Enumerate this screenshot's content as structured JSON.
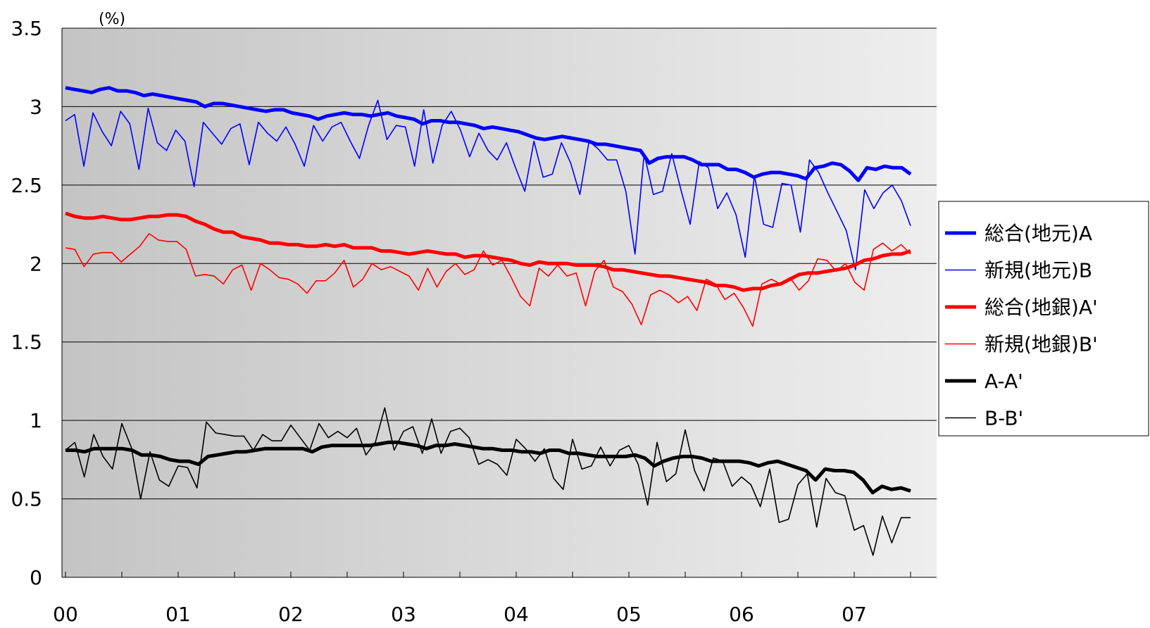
{
  "chart_data": {
    "type": "line",
    "title": "",
    "xlabel": "",
    "ylabel": "(%)",
    "ylim": [
      0,
      3.5
    ],
    "yticks": [
      "0",
      "0.5",
      "1",
      "1.5",
      "2",
      "2.5",
      "3",
      "3.5"
    ],
    "xlim": [
      0,
      7.72
    ],
    "xticks": [
      "00",
      "01",
      "02",
      "03",
      "04",
      "05",
      "06",
      "07"
    ],
    "grid": "horizontal",
    "legend_position": "right",
    "series": [
      {
        "name": "総合(地元)A",
        "color": "#0000ff",
        "style": "thick",
        "values": [
          3.12,
          3.11,
          3.1,
          3.09,
          3.11,
          3.12,
          3.1,
          3.1,
          3.09,
          3.07,
          3.08,
          3.07,
          3.06,
          3.05,
          3.04,
          3.03,
          3.0,
          3.02,
          3.02,
          3.01,
          3.0,
          2.99,
          2.98,
          2.97,
          2.98,
          2.98,
          2.96,
          2.95,
          2.94,
          2.92,
          2.94,
          2.95,
          2.96,
          2.95,
          2.95,
          2.94,
          2.95,
          2.96,
          2.94,
          2.93,
          2.92,
          2.89,
          2.91,
          2.91,
          2.9,
          2.9,
          2.89,
          2.88,
          2.86,
          2.87,
          2.86,
          2.85,
          2.84,
          2.82,
          2.8,
          2.79,
          2.8,
          2.81,
          2.8,
          2.79,
          2.78,
          2.76,
          2.76,
          2.75,
          2.74,
          2.73,
          2.72,
          2.64,
          2.67,
          2.68,
          2.68,
          2.68,
          2.66,
          2.63,
          2.63,
          2.63,
          2.6,
          2.6,
          2.58,
          2.55,
          2.57,
          2.58,
          2.58,
          2.57,
          2.56,
          2.54,
          2.61,
          2.62,
          2.64,
          2.63,
          2.59,
          2.53,
          2.61,
          2.6,
          2.62,
          2.61,
          2.61,
          2.57
        ]
      },
      {
        "name": "新規(地元)B",
        "color": "#0000ff",
        "style": "thin",
        "values": [
          2.91,
          2.95,
          2.62,
          2.96,
          2.84,
          2.75,
          2.97,
          2.89,
          2.6,
          2.99,
          2.77,
          2.72,
          2.85,
          2.78,
          2.49,
          2.9,
          2.83,
          2.76,
          2.86,
          2.89,
          2.63,
          2.9,
          2.83,
          2.78,
          2.87,
          2.76,
          2.62,
          2.88,
          2.78,
          2.87,
          2.9,
          2.78,
          2.67,
          2.88,
          3.04,
          2.79,
          2.88,
          2.87,
          2.62,
          2.98,
          2.64,
          2.88,
          2.97,
          2.85,
          2.68,
          2.83,
          2.72,
          2.66,
          2.77,
          2.61,
          2.46,
          2.78,
          2.55,
          2.57,
          2.77,
          2.64,
          2.44,
          2.78,
          2.73,
          2.66,
          2.66,
          2.46,
          2.06,
          2.7,
          2.44,
          2.46,
          2.7,
          2.47,
          2.25,
          2.65,
          2.61,
          2.35,
          2.45,
          2.31,
          2.04,
          2.56,
          2.25,
          2.23,
          2.51,
          2.5,
          2.2,
          2.66,
          2.58,
          2.45,
          2.33,
          2.21,
          1.96,
          2.47,
          2.35,
          2.45,
          2.5,
          2.4,
          2.24
        ]
      },
      {
        "name": "総合(地銀)A'",
        "color": "#ff0000",
        "style": "thick",
        "values": [
          2.32,
          2.3,
          2.29,
          2.29,
          2.3,
          2.29,
          2.28,
          2.28,
          2.29,
          2.3,
          2.3,
          2.31,
          2.31,
          2.3,
          2.27,
          2.25,
          2.22,
          2.2,
          2.2,
          2.17,
          2.16,
          2.15,
          2.13,
          2.13,
          2.12,
          2.12,
          2.11,
          2.11,
          2.12,
          2.11,
          2.12,
          2.1,
          2.1,
          2.1,
          2.08,
          2.08,
          2.07,
          2.06,
          2.07,
          2.08,
          2.07,
          2.06,
          2.06,
          2.04,
          2.05,
          2.05,
          2.04,
          2.03,
          2.02,
          2.0,
          1.99,
          2.01,
          2.0,
          2.0,
          2.0,
          1.99,
          1.99,
          1.99,
          1.98,
          1.96,
          1.96,
          1.95,
          1.94,
          1.93,
          1.92,
          1.92,
          1.91,
          1.9,
          1.89,
          1.88,
          1.86,
          1.86,
          1.85,
          1.83,
          1.84,
          1.84,
          1.86,
          1.87,
          1.9,
          1.93,
          1.94,
          1.94,
          1.95,
          1.96,
          1.97,
          1.99,
          2.02,
          2.03,
          2.05,
          2.06,
          2.06,
          2.08
        ]
      },
      {
        "name": "新規(地銀)B'",
        "color": "#ff0000",
        "style": "thin",
        "values": [
          2.1,
          2.09,
          1.98,
          2.06,
          2.07,
          2.07,
          2.01,
          2.06,
          2.11,
          2.19,
          2.15,
          2.14,
          2.14,
          2.09,
          1.92,
          1.93,
          1.92,
          1.87,
          1.96,
          1.99,
          1.83,
          2.0,
          1.96,
          1.91,
          1.9,
          1.87,
          1.81,
          1.89,
          1.89,
          1.94,
          2.02,
          1.85,
          1.9,
          2.0,
          1.96,
          1.98,
          1.95,
          1.92,
          1.83,
          1.97,
          1.85,
          1.95,
          2.0,
          1.93,
          1.96,
          2.08,
          1.99,
          2.02,
          1.91,
          1.79,
          1.73,
          1.97,
          1.92,
          1.99,
          1.92,
          1.94,
          1.73,
          1.95,
          2.02,
          1.85,
          1.82,
          1.74,
          1.61,
          1.8,
          1.83,
          1.8,
          1.75,
          1.79,
          1.7,
          1.9,
          1.87,
          1.77,
          1.81,
          1.72,
          1.6,
          1.87,
          1.9,
          1.87,
          1.91,
          1.83,
          1.89,
          2.03,
          2.02,
          1.95,
          2.0,
          1.88,
          1.83,
          2.09,
          2.13,
          2.08,
          2.12,
          2.06
        ]
      },
      {
        "name": "A-A'",
        "color": "#000000",
        "style": "thick",
        "values": [
          0.81,
          0.81,
          0.8,
          0.82,
          0.82,
          0.82,
          0.82,
          0.81,
          0.78,
          0.78,
          0.77,
          0.75,
          0.74,
          0.74,
          0.72,
          0.77,
          0.78,
          0.79,
          0.8,
          0.8,
          0.81,
          0.82,
          0.82,
          0.82,
          0.82,
          0.82,
          0.8,
          0.83,
          0.84,
          0.84,
          0.84,
          0.84,
          0.84,
          0.85,
          0.86,
          0.86,
          0.85,
          0.84,
          0.82,
          0.84,
          0.84,
          0.85,
          0.84,
          0.83,
          0.82,
          0.82,
          0.81,
          0.81,
          0.8,
          0.8,
          0.79,
          0.81,
          0.81,
          0.79,
          0.79,
          0.78,
          0.77,
          0.77,
          0.77,
          0.77,
          0.78,
          0.76,
          0.71,
          0.74,
          0.76,
          0.77,
          0.77,
          0.76,
          0.74,
          0.74,
          0.74,
          0.74,
          0.73,
          0.71,
          0.73,
          0.74,
          0.72,
          0.7,
          0.68,
          0.62,
          0.69,
          0.68,
          0.68,
          0.67,
          0.62,
          0.54,
          0.58,
          0.56,
          0.57,
          0.55
        ]
      },
      {
        "name": "B-B'",
        "color": "#000000",
        "style": "thin",
        "values": [
          0.81,
          0.86,
          0.64,
          0.91,
          0.77,
          0.69,
          0.98,
          0.83,
          0.5,
          0.8,
          0.62,
          0.58,
          0.71,
          0.7,
          0.57,
          0.99,
          0.92,
          0.91,
          0.9,
          0.9,
          0.81,
          0.91,
          0.87,
          0.87,
          0.97,
          0.89,
          0.81,
          0.98,
          0.89,
          0.93,
          0.89,
          0.95,
          0.78,
          0.86,
          1.08,
          0.81,
          0.93,
          0.96,
          0.79,
          1.01,
          0.79,
          0.93,
          0.95,
          0.89,
          0.72,
          0.75,
          0.72,
          0.65,
          0.88,
          0.82,
          0.74,
          0.82,
          0.63,
          0.56,
          0.88,
          0.69,
          0.71,
          0.83,
          0.71,
          0.81,
          0.84,
          0.72,
          0.46,
          0.86,
          0.61,
          0.66,
          0.94,
          0.68,
          0.55,
          0.76,
          0.74,
          0.58,
          0.64,
          0.59,
          0.45,
          0.69,
          0.35,
          0.37,
          0.59,
          0.66,
          0.32,
          0.63,
          0.54,
          0.52,
          0.3,
          0.33,
          0.14,
          0.39,
          0.22,
          0.38,
          0.38
        ]
      }
    ]
  }
}
